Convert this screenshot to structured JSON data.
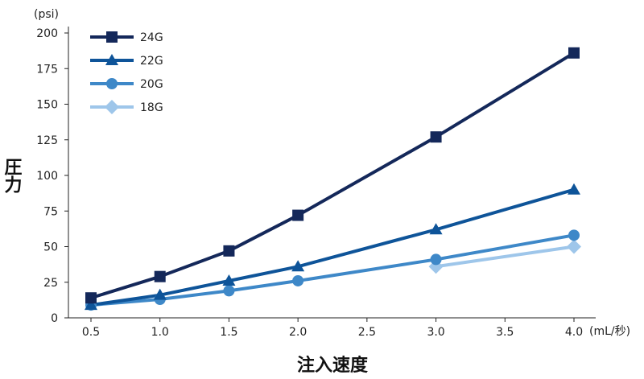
{
  "chart_data": {
    "type": "line",
    "x_unit": "(mL/秒)",
    "y_unit": "(psi)",
    "xlabel": "注入速度",
    "ylabel": "圧力",
    "xlim": [
      0.5,
      4.0
    ],
    "ylim": [
      0,
      200
    ],
    "x_ticks": [
      "0.5",
      "1.0",
      "1.5",
      "2.0",
      "2.5",
      "3.0",
      "3.5",
      "4.0"
    ],
    "y_ticks": [
      "0",
      "25",
      "50",
      "75",
      "100",
      "125",
      "150",
      "175",
      "200"
    ],
    "legend_position": "top-left",
    "series": [
      {
        "name": "24G",
        "marker": "square",
        "color": "#14285a",
        "points": [
          [
            0.5,
            14
          ],
          [
            1.0,
            29
          ],
          [
            1.5,
            47
          ],
          [
            2.0,
            72
          ],
          [
            3.0,
            127
          ],
          [
            4.0,
            186
          ]
        ]
      },
      {
        "name": "22G",
        "marker": "triangle",
        "color": "#0e5499",
        "points": [
          [
            0.5,
            9
          ],
          [
            1.0,
            16
          ],
          [
            1.5,
            26
          ],
          [
            2.0,
            36
          ],
          [
            3.0,
            62
          ],
          [
            4.0,
            90
          ]
        ]
      },
      {
        "name": "20G",
        "marker": "circle",
        "color": "#3e88c8",
        "points": [
          [
            0.5,
            9
          ],
          [
            1.0,
            13
          ],
          [
            1.5,
            19
          ],
          [
            2.0,
            26
          ],
          [
            3.0,
            41
          ],
          [
            4.0,
            58
          ]
        ]
      },
      {
        "name": "18G",
        "marker": "diamond",
        "color": "#9ec6ea",
        "points": [
          [
            3.0,
            36
          ],
          [
            4.0,
            50
          ]
        ]
      }
    ]
  }
}
